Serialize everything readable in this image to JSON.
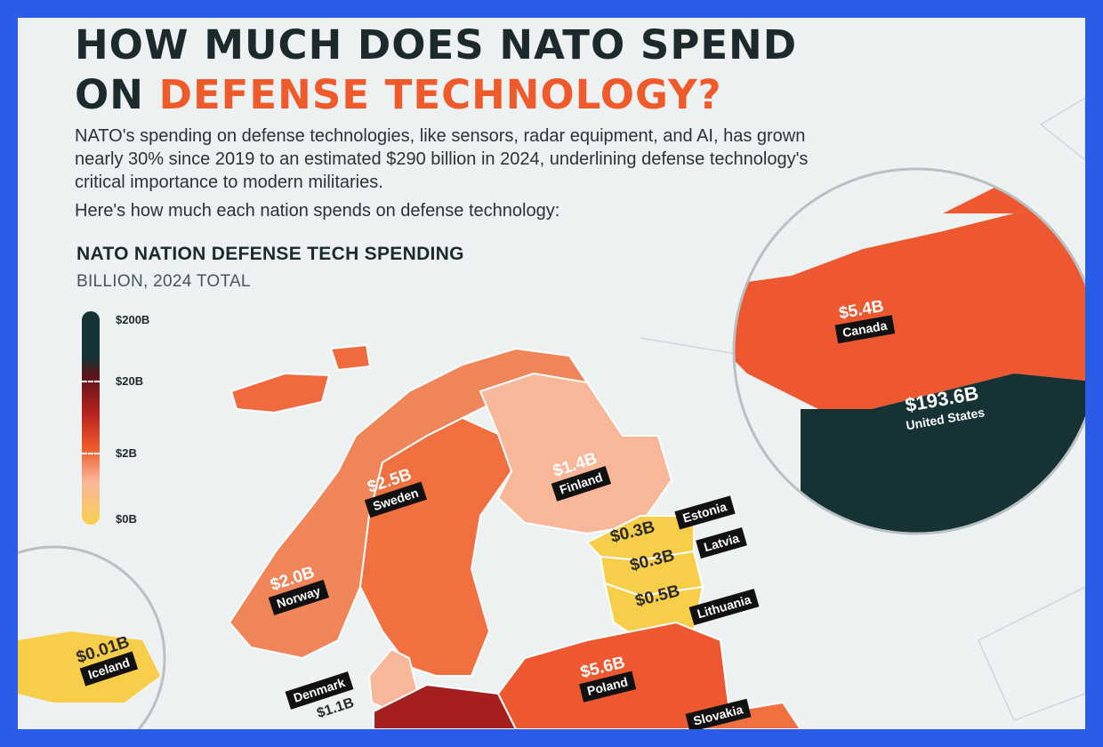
{
  "title": {
    "line1": "HOW MUCH DOES NATO SPEND",
    "line2_prefix": "ON ",
    "line2_accent": "DEFENSE TECHNOLOGY?"
  },
  "intro": "NATO's spending on defense technologies, like sensors, radar equipment, and AI, has grown nearly 30% since 2019 to an estimated $290 billion in 2024, underlining defense technology's critical importance to modern militaries.",
  "intro2": "Here's how much each nation spends on defense technology:",
  "chart_title": "NATO NATION DEFENSE TECH SPENDING",
  "chart_subtitle": "BILLION, 2024 TOTAL",
  "scale": {
    "labels": [
      "$200B",
      "$20B",
      "$2B",
      "$0B"
    ],
    "colors": [
      "#173234",
      "#b8221f",
      "#ef5a2a",
      "#f9b79a",
      "#f7d050"
    ]
  },
  "chart_data": {
    "type": "choropleth",
    "title": "NATO NATION DEFENSE TECH SPENDING",
    "unit": "BILLION, 2024 TOTAL",
    "regions": [
      {
        "name": "Canada",
        "value": 5.4,
        "label": "$5.4B"
      },
      {
        "name": "United States",
        "value": 193.6,
        "label": "$193.6B"
      },
      {
        "name": "Sweden",
        "value": 2.5,
        "label": "$2.5B"
      },
      {
        "name": "Finland",
        "value": 1.4,
        "label": "$1.4B"
      },
      {
        "name": "Norway",
        "value": 2.0,
        "label": "$2.0B"
      },
      {
        "name": "Estonia",
        "value": 0.3,
        "label": "$0.3B"
      },
      {
        "name": "Latvia",
        "value": 0.3,
        "label": "$0.3B"
      },
      {
        "name": "Lithuania",
        "value": 0.5,
        "label": "$0.5B"
      },
      {
        "name": "Iceland",
        "value": 0.01,
        "label": "$0.01B"
      },
      {
        "name": "Poland",
        "value": 5.6,
        "label": "$5.6B"
      },
      {
        "name": "Denmark",
        "value": 1.1,
        "label": "$1.1B"
      },
      {
        "name": "Slovakia",
        "value": null,
        "label": ""
      }
    ]
  },
  "countries": {
    "canada": {
      "value": "$5.4B",
      "name": "Canada"
    },
    "usa": {
      "value": "$193.6B",
      "name": "United States"
    },
    "sweden": {
      "value": "$2.5B",
      "name": "Sweden"
    },
    "finland": {
      "value": "$1.4B",
      "name": "Finland"
    },
    "norway": {
      "value": "$2.0B",
      "name": "Norway"
    },
    "estonia": {
      "value": "$0.3B",
      "name": "Estonia"
    },
    "latvia": {
      "value": "$0.3B",
      "name": "Latvia"
    },
    "lithuania": {
      "value": "$0.5B",
      "name": "Lithuania"
    },
    "iceland": {
      "value": "$0.01B",
      "name": "Iceland"
    },
    "poland": {
      "value": "$5.6B",
      "name": "Poland"
    },
    "denmark": {
      "value": "$1.1B",
      "name": "Denmark"
    },
    "slovakia": {
      "name": "Slovakia"
    }
  }
}
